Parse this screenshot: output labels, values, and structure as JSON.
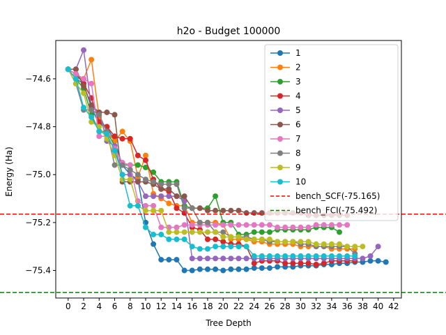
{
  "chart_data": {
    "type": "line",
    "title": "h2o - Budget  100000",
    "xlabel": "Tree Depth",
    "ylabel": "Energy (Ha)",
    "xlim": [
      -1.6,
      43.0
    ],
    "ylim": [
      -75.515,
      -74.44
    ],
    "xticks": [
      0,
      2,
      4,
      6,
      8,
      10,
      12,
      14,
      16,
      18,
      20,
      22,
      24,
      26,
      28,
      30,
      32,
      34,
      36,
      38,
      40,
      42
    ],
    "yticks": [
      -74.6,
      -74.8,
      -75.0,
      -75.2,
      -75.4
    ],
    "ytick_labels": [
      "−74.6",
      "−74.8",
      "−75.0",
      "−75.2",
      "−75.4"
    ],
    "grid": false,
    "legend_position": "top-right",
    "series": [
      {
        "name": "1",
        "color": "#1f77b4",
        "x": [
          0,
          1,
          2,
          3,
          4,
          5,
          6,
          7,
          8,
          9,
          10,
          11,
          12,
          13,
          14,
          15,
          16,
          17,
          18,
          19,
          20,
          21,
          22,
          23,
          24,
          25,
          26,
          27,
          28,
          29,
          30,
          31,
          32,
          33,
          34,
          35,
          36,
          37,
          38,
          39,
          40,
          41
        ],
        "y": [
          -74.56,
          -74.6,
          -74.62,
          -74.72,
          -74.79,
          -74.8,
          -74.86,
          -74.96,
          -75.0,
          -75.02,
          -75.2,
          -75.29,
          -75.355,
          -75.355,
          -75.355,
          -75.4,
          -75.4,
          -75.395,
          -75.395,
          -75.395,
          -75.4,
          -75.395,
          -75.395,
          -75.395,
          -75.39,
          -75.39,
          -75.39,
          -75.385,
          -75.385,
          -75.385,
          -75.38,
          -75.38,
          -75.38,
          -75.375,
          -75.375,
          -75.37,
          -75.37,
          -75.365,
          -75.365,
          -75.36,
          -75.36,
          -75.365
        ]
      },
      {
        "name": "2",
        "color": "#ff7f0e",
        "x": [
          0,
          1,
          2,
          3,
          4,
          5,
          6,
          7,
          8,
          9,
          10,
          11,
          12,
          13,
          14,
          15,
          16,
          17,
          18,
          19,
          20,
          21,
          22,
          23,
          24,
          25,
          26,
          27,
          28,
          29,
          30,
          31,
          32,
          33,
          34,
          35,
          36,
          37
        ],
        "y": [
          -74.56,
          -74.58,
          -74.6,
          -74.52,
          -74.76,
          -74.82,
          -74.86,
          -74.82,
          -74.86,
          -75.01,
          -74.92,
          -75.08,
          -75.1,
          -75.12,
          -75.13,
          -75.13,
          -75.2,
          -75.2,
          -75.2,
          -75.2,
          -75.21,
          -75.27,
          -75.27,
          -75.27,
          -75.28,
          -75.28,
          -75.29,
          -75.29,
          -75.29,
          -75.29,
          -75.3,
          -75.3,
          -75.3,
          -75.3,
          -75.31,
          -75.31,
          -75.31,
          -75.31
        ]
      },
      {
        "name": "3",
        "color": "#2ca02c",
        "x": [
          0,
          1,
          2,
          3,
          4,
          5,
          6,
          7,
          8,
          9,
          10,
          11,
          12,
          13,
          14,
          15,
          16,
          17,
          18,
          19,
          20,
          21,
          22,
          23,
          24,
          25,
          26,
          27,
          28,
          29,
          30,
          31,
          32,
          33,
          34,
          35
        ],
        "y": [
          -74.56,
          -74.6,
          -74.64,
          -74.75,
          -74.82,
          -74.82,
          -74.88,
          -74.96,
          -74.96,
          -74.96,
          -74.97,
          -74.99,
          -75.03,
          -75.03,
          -75.03,
          -75.13,
          -75.14,
          -75.14,
          -75.14,
          -75.09,
          -75.2,
          -75.2,
          -75.25,
          -75.25,
          -75.24,
          -75.24,
          -75.24,
          -75.23,
          -75.23,
          -75.23,
          -75.23,
          -75.23,
          -75.22,
          -75.22,
          -75.22,
          -75.24
        ]
      },
      {
        "name": "4",
        "color": "#d62728",
        "x": [
          0,
          1,
          2,
          3,
          4,
          5,
          6,
          7,
          8,
          9,
          10,
          11,
          12,
          13,
          14,
          15,
          16,
          17,
          18,
          19,
          20,
          21,
          22,
          23,
          24,
          25,
          26,
          27,
          28,
          29,
          30,
          31,
          32,
          33,
          34,
          35,
          36,
          37
        ],
        "y": [
          -74.56,
          -74.58,
          -74.62,
          -74.68,
          -74.78,
          -74.8,
          -74.84,
          -74.85,
          -74.85,
          -74.92,
          -74.94,
          -75.02,
          -75.06,
          -75.07,
          -75.14,
          -75.16,
          -75.22,
          -75.23,
          -75.27,
          -75.27,
          -75.28,
          -75.29,
          -75.29,
          -75.3,
          -75.37,
          -75.36,
          -75.36,
          -75.36,
          -75.37,
          -75.37,
          -75.37,
          -75.37,
          -75.375,
          -75.37,
          -75.36,
          -75.36,
          -75.36,
          -75.36
        ]
      },
      {
        "name": "5",
        "color": "#9467bd",
        "x": [
          0,
          1,
          2,
          3,
          4,
          5,
          6,
          7,
          8,
          9,
          10,
          11,
          12,
          13,
          14,
          15,
          16,
          17,
          18,
          19,
          20,
          21,
          22,
          23,
          24,
          25,
          26,
          27,
          28,
          29,
          30,
          31,
          32,
          33,
          34,
          35,
          36,
          37,
          38,
          39,
          40
        ],
        "y": [
          -74.56,
          -74.56,
          -74.48,
          -74.72,
          -74.74,
          -74.86,
          -74.88,
          -75.0,
          -75.0,
          -75.03,
          -75.09,
          -75.09,
          -75.09,
          -75.09,
          -75.09,
          -75.11,
          -75.35,
          -75.35,
          -75.35,
          -75.35,
          -75.35,
          -75.35,
          -75.35,
          -75.35,
          -75.35,
          -75.35,
          -75.35,
          -75.35,
          -75.35,
          -75.35,
          -75.35,
          -75.35,
          -75.35,
          -75.35,
          -75.35,
          -75.35,
          -75.35,
          -75.35,
          -75.35,
          -75.34,
          -75.3
        ]
      },
      {
        "name": "6",
        "color": "#8c564b",
        "x": [
          0,
          1,
          2,
          3,
          4,
          5,
          6,
          7,
          8,
          9,
          10,
          11,
          12,
          13,
          14,
          15,
          16,
          17,
          18,
          19,
          20,
          21,
          22,
          23,
          24,
          25,
          26,
          27,
          28,
          29,
          30,
          31,
          32,
          33,
          34,
          35,
          36
        ],
        "y": [
          -74.56,
          -74.56,
          -74.63,
          -74.71,
          -74.74,
          -74.74,
          -74.75,
          -75.03,
          -75.03,
          -75.03,
          -75.03,
          -75.04,
          -75.06,
          -75.06,
          -75.09,
          -75.09,
          -75.14,
          -75.14,
          -75.15,
          -75.15,
          -75.15,
          -75.15,
          -75.15,
          -75.16,
          -75.16,
          -75.16,
          -75.16,
          -75.16,
          -75.16,
          -75.16,
          -75.16,
          -75.17,
          -75.17,
          -75.17,
          -75.17,
          -75.17,
          -75.17
        ]
      },
      {
        "name": "7",
        "color": "#e377c2",
        "x": [
          0,
          1,
          2,
          3,
          4,
          5,
          6,
          7,
          8,
          9,
          10,
          11,
          12,
          13,
          14,
          15,
          16,
          17,
          18,
          19,
          20,
          21,
          22,
          23,
          24,
          25,
          26,
          27,
          28,
          29,
          30,
          31,
          32,
          33,
          34,
          35,
          36
        ],
        "y": [
          -74.56,
          -74.58,
          -74.6,
          -74.62,
          -74.84,
          -74.84,
          -74.89,
          -74.95,
          -74.96,
          -75.11,
          -75.13,
          -75.13,
          -75.22,
          -75.22,
          -75.22,
          -75.21,
          -75.21,
          -75.21,
          -75.21,
          -75.21,
          -75.21,
          -75.21,
          -75.21,
          -75.21,
          -75.21,
          -75.21,
          -75.21,
          -75.22,
          -75.22,
          -75.22,
          -75.22,
          -75.22,
          -75.21,
          -75.21,
          -75.21,
          -75.21,
          -75.21
        ]
      },
      {
        "name": "8",
        "color": "#7f7f7f",
        "x": [
          0,
          1,
          2,
          3,
          4,
          5,
          6,
          7,
          8,
          9,
          10,
          11,
          12,
          13,
          14,
          15,
          16,
          17,
          18,
          19,
          20,
          21,
          22,
          23,
          24,
          25,
          26,
          27,
          28,
          29,
          30,
          31,
          32,
          33,
          34,
          35,
          36,
          37
        ],
        "y": [
          -74.56,
          -74.62,
          -74.73,
          -74.73,
          -74.75,
          -74.82,
          -74.96,
          -74.96,
          -74.98,
          -75.0,
          -75.02,
          -75.03,
          -75.04,
          -75.04,
          -75.04,
          -75.14,
          -75.14,
          -75.2,
          -75.2,
          -75.24,
          -75.24,
          -75.26,
          -75.26,
          -75.26,
          -75.27,
          -75.27,
          -75.28,
          -75.28,
          -75.28,
          -75.28,
          -75.29,
          -75.29,
          -75.3,
          -75.3,
          -75.3,
          -75.3,
          -75.3,
          -75.33
        ]
      },
      {
        "name": "9",
        "color": "#bcbd22",
        "x": [
          0,
          1,
          2,
          3,
          4,
          5,
          6,
          7,
          8,
          9,
          10,
          11,
          12,
          13,
          14,
          15,
          16,
          17,
          18,
          19,
          20,
          21,
          22,
          23,
          24,
          25,
          26,
          27,
          28,
          29,
          30,
          31,
          32,
          33,
          34,
          35,
          36,
          37,
          38
        ],
        "y": [
          -74.56,
          -74.62,
          -74.66,
          -74.78,
          -74.8,
          -74.85,
          -74.92,
          -75.02,
          -75.02,
          -75.13,
          -75.15,
          -75.15,
          -75.15,
          -75.24,
          -75.24,
          -75.24,
          -75.24,
          -75.24,
          -75.24,
          -75.24,
          -75.26,
          -75.26,
          -75.26,
          -75.27,
          -75.27,
          -75.27,
          -75.27,
          -75.28,
          -75.28,
          -75.28,
          -75.28,
          -75.28,
          -75.29,
          -75.29,
          -75.29,
          -75.29,
          -75.3,
          -75.3,
          -75.3
        ]
      },
      {
        "name": "10",
        "color": "#17becf",
        "x": [
          0,
          1,
          2,
          3,
          4,
          5,
          6,
          7,
          8,
          9,
          10,
          11,
          12,
          13,
          14,
          15,
          16,
          17,
          18,
          19,
          20,
          21,
          22,
          23,
          24,
          25,
          26,
          27,
          28,
          29,
          30,
          31,
          32,
          33,
          34,
          35,
          36,
          37
        ],
        "y": [
          -74.56,
          -74.6,
          -74.72,
          -74.76,
          -74.82,
          -74.83,
          -74.9,
          -75.0,
          -75.13,
          -75.13,
          -75.22,
          -75.25,
          -75.25,
          -75.27,
          -75.27,
          -75.27,
          -75.3,
          -75.31,
          -75.31,
          -75.3,
          -75.3,
          -75.3,
          -75.3,
          -75.3,
          -75.34,
          -75.34,
          -75.34,
          -75.34,
          -75.34,
          -75.34,
          -75.34,
          -75.34,
          -75.34,
          -75.34,
          -75.34,
          -75.34,
          -75.34,
          -75.34
        ]
      }
    ],
    "reference_lines": [
      {
        "name": "bench_SCF(-75.165)",
        "value": -75.165,
        "color": "#ff0000",
        "style": "dashed"
      },
      {
        "name": "bench_FCI(-75.492)",
        "value": -75.492,
        "color": "#008000",
        "style": "dashed"
      }
    ]
  }
}
